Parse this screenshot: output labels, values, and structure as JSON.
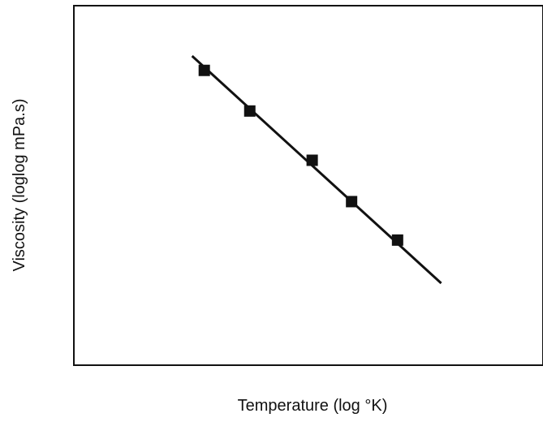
{
  "chart_data": {
    "type": "scatter",
    "xlabel": "Temperature (log °K)",
    "ylabel": "Viscosity (loglog mPa.s)",
    "grid": false,
    "legend": "none",
    "tick_labels": false,
    "xlim": [
      0,
      1
    ],
    "ylim": [
      0,
      1
    ],
    "series": [
      {
        "kind": "points",
        "marker": "square",
        "x": [
          0.278,
          0.375,
          0.508,
          0.592,
          0.69
        ],
        "y": [
          0.82,
          0.707,
          0.57,
          0.455,
          0.348
        ]
      },
      {
        "kind": "fit-line",
        "x": [
          0.252,
          0.783
        ],
        "y": [
          0.86,
          0.228
        ]
      }
    ],
    "colors": {
      "frame": "#111111",
      "marker": "#111111",
      "line": "#111111",
      "text": "#111111"
    }
  }
}
